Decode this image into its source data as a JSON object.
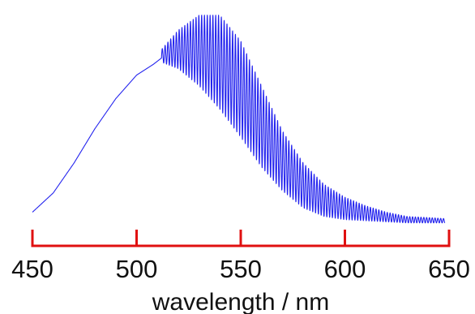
{
  "chart_data": {
    "type": "line",
    "title": "",
    "xlabel": "wavelength / nm",
    "ylabel": "",
    "xlim": [
      450,
      650
    ],
    "x_ticks": [
      450,
      500,
      550,
      600,
      650
    ],
    "y_axis_visible": false,
    "grid": false,
    "legend": "none",
    "series": [
      {
        "color": "#2222ee",
        "envelope_points": [
          {
            "x": 450,
            "y": 0.07
          },
          {
            "x": 460,
            "y": 0.16
          },
          {
            "x": 470,
            "y": 0.3
          },
          {
            "x": 480,
            "y": 0.46
          },
          {
            "x": 490,
            "y": 0.6
          },
          {
            "x": 500,
            "y": 0.71
          },
          {
            "x": 508,
            "y": 0.76
          },
          {
            "x": 512,
            "y": 0.79
          }
        ],
        "interference_points": [
          {
            "x": 512,
            "upper": 0.83,
            "lower": 0.77
          },
          {
            "x": 520,
            "upper": 0.92,
            "lower": 0.74
          },
          {
            "x": 530,
            "upper": 0.99,
            "lower": 0.66
          },
          {
            "x": 540,
            "upper": 0.99,
            "lower": 0.55
          },
          {
            "x": 550,
            "upper": 0.87,
            "lower": 0.42
          },
          {
            "x": 560,
            "upper": 0.66,
            "lower": 0.28
          },
          {
            "x": 570,
            "upper": 0.45,
            "lower": 0.17
          },
          {
            "x": 580,
            "upper": 0.3,
            "lower": 0.09
          },
          {
            "x": 590,
            "upper": 0.2,
            "lower": 0.05
          },
          {
            "x": 600,
            "upper": 0.14,
            "lower": 0.035
          },
          {
            "x": 610,
            "upper": 0.1,
            "lower": 0.03
          },
          {
            "x": 620,
            "upper": 0.07,
            "lower": 0.025
          },
          {
            "x": 630,
            "upper": 0.05,
            "lower": 0.02
          },
          {
            "x": 640,
            "upper": 0.045,
            "lower": 0.02
          },
          {
            "x": 648,
            "upper": 0.04,
            "lower": 0.02
          }
        ],
        "fringe_period_nm": 1.35
      }
    ],
    "axis_color": "#e01010"
  }
}
